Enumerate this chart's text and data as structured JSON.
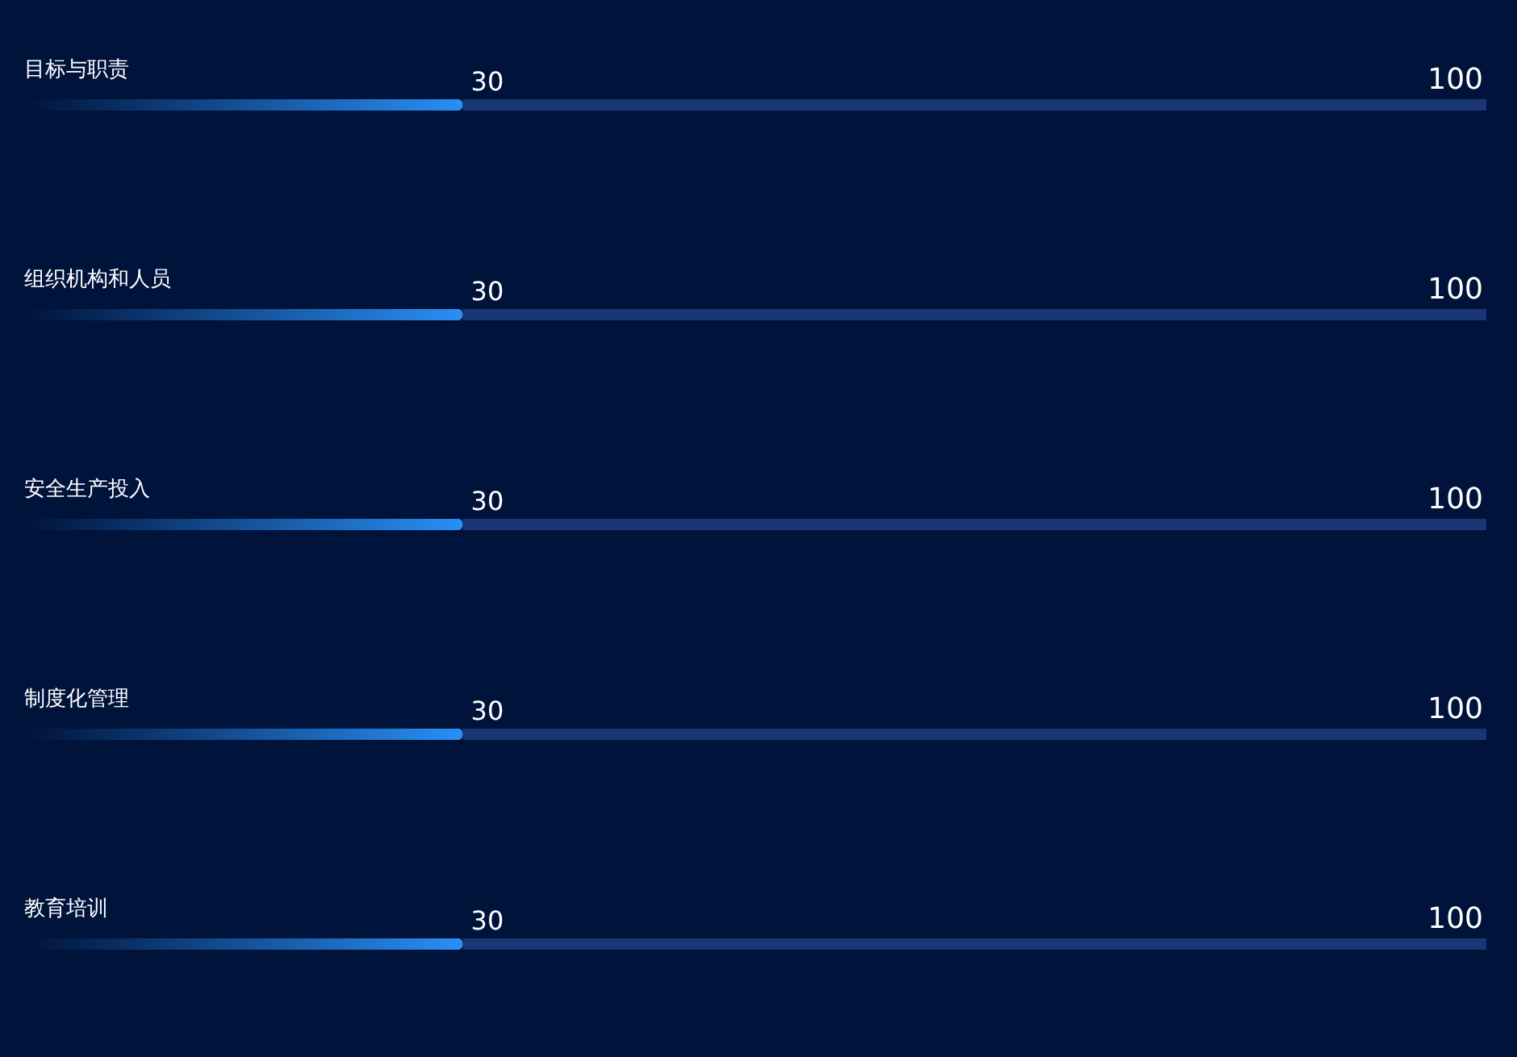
{
  "chart_data": {
    "type": "bar",
    "orientation": "horizontal",
    "stacked": true,
    "categories": [
      "目标与职责",
      "组织机构和人员",
      "安全生产投入",
      "制度化管理",
      "教育培训"
    ],
    "xlim": [
      0,
      100
    ],
    "tick_labels": false,
    "series": [
      {
        "color": "#2a8ff5",
        "values": [
          30,
          30,
          30,
          30,
          30
        ],
        "value_labels": [
          "30",
          "30",
          "30",
          "30",
          "30"
        ]
      },
      {
        "color": "#1b3674",
        "values": [
          70,
          70,
          70,
          70,
          70
        ]
      }
    ],
    "totals": [
      "100",
      "100",
      "100",
      "100",
      "100"
    ]
  }
}
